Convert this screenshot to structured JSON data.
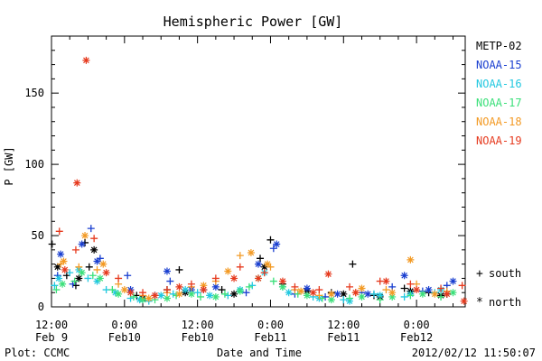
{
  "chart_data": {
    "type": "scatter",
    "title": "Hemispheric Power [GW]",
    "ylabel": "P [GW]",
    "xlabel": "Date and Time",
    "ylim": [
      0,
      190
    ],
    "yticks": [
      0,
      50,
      100,
      150
    ],
    "xlim": [
      12,
      80
    ],
    "xunit": "hours since 2012-02-09 00:00",
    "xticks": [
      {
        "x": 12,
        "line1": "12:00",
        "line2": "Feb 9"
      },
      {
        "x": 24,
        "line1": "0:00",
        "line2": "Feb10"
      },
      {
        "x": 36,
        "line1": "12:00",
        "line2": "Feb10"
      },
      {
        "x": 48,
        "line1": "0:00",
        "line2": "Feb11"
      },
      {
        "x": 60,
        "line1": "12:00",
        "line2": "Feb11"
      },
      {
        "x": 72,
        "line1": "0:00",
        "line2": "Feb12"
      }
    ],
    "marker_legend": [
      {
        "symbol": "+",
        "label": "south"
      },
      {
        "symbol": "*",
        "label": "north"
      }
    ],
    "series": [
      {
        "name": "METP-02",
        "color": "#000000",
        "south": [
          [
            12.1,
            44
          ],
          [
            14.5,
            22
          ],
          [
            16,
            15
          ],
          [
            17.5,
            45
          ],
          [
            18.2,
            28
          ],
          [
            26,
            8
          ],
          [
            31,
            12
          ],
          [
            33,
            26
          ],
          [
            40,
            12
          ],
          [
            46.3,
            34
          ],
          [
            48,
            47
          ],
          [
            50,
            16
          ],
          [
            58,
            10
          ],
          [
            61.5,
            30
          ],
          [
            65,
            8
          ],
          [
            70,
            13
          ],
          [
            74,
            10
          ],
          [
            77,
            9
          ]
        ],
        "north": [
          [
            13,
            28
          ],
          [
            16.5,
            20
          ],
          [
            19,
            40
          ],
          [
            27,
            6
          ],
          [
            34,
            10
          ],
          [
            42,
            9
          ],
          [
            47,
            28
          ],
          [
            54,
            11
          ],
          [
            60,
            9
          ],
          [
            66,
            7
          ],
          [
            71,
            11
          ],
          [
            76,
            8
          ]
        ]
      },
      {
        "name": "NOAA-15",
        "color": "#1a3fd0",
        "south": [
          [
            13,
            22
          ],
          [
            15.5,
            16
          ],
          [
            18.5,
            55
          ],
          [
            20,
            34
          ],
          [
            24.5,
            22
          ],
          [
            29,
            8
          ],
          [
            31.5,
            18
          ],
          [
            37,
            12
          ],
          [
            44,
            10
          ],
          [
            48.5,
            41
          ],
          [
            52,
            9
          ],
          [
            57,
            7
          ],
          [
            63,
            10
          ],
          [
            68,
            14
          ],
          [
            73,
            11
          ],
          [
            77,
            15
          ]
        ],
        "north": [
          [
            13.5,
            37
          ],
          [
            17,
            44
          ],
          [
            19.5,
            32
          ],
          [
            25,
            12
          ],
          [
            31,
            25
          ],
          [
            35,
            12
          ],
          [
            39,
            14
          ],
          [
            46,
            30
          ],
          [
            49,
            44
          ],
          [
            54,
            13
          ],
          [
            59,
            9
          ],
          [
            64,
            9
          ],
          [
            70,
            22
          ],
          [
            74,
            12
          ],
          [
            78,
            18
          ]
        ]
      },
      {
        "name": "NOAA-16",
        "color": "#22c8e0",
        "south": [
          [
            12.5,
            15
          ],
          [
            15,
            24
          ],
          [
            18,
            20
          ],
          [
            21,
            12
          ],
          [
            25,
            6
          ],
          [
            28,
            4
          ],
          [
            32,
            9
          ],
          [
            36,
            10
          ],
          [
            41,
            8
          ],
          [
            45,
            15
          ],
          [
            50,
            14
          ],
          [
            55,
            7
          ],
          [
            60,
            5
          ],
          [
            65,
            9
          ],
          [
            70,
            7
          ],
          [
            75,
            10
          ]
        ],
        "north": [
          [
            13.2,
            20
          ],
          [
            16.5,
            26
          ],
          [
            19.5,
            18
          ],
          [
            22.5,
            10
          ],
          [
            26.5,
            5
          ],
          [
            30,
            8
          ],
          [
            34,
            12
          ],
          [
            38,
            8
          ],
          [
            43,
            12
          ],
          [
            47,
            24
          ],
          [
            51,
            10
          ],
          [
            56,
            6
          ],
          [
            61,
            4
          ],
          [
            66,
            8
          ],
          [
            71,
            9
          ],
          [
            76,
            12
          ]
        ]
      },
      {
        "name": "NOAA-17",
        "color": "#3be07a",
        "south": [
          [
            12.8,
            12
          ],
          [
            15.8,
            18
          ],
          [
            18.8,
            22
          ],
          [
            22,
            12
          ],
          [
            25.5,
            7
          ],
          [
            29,
            5
          ],
          [
            32.5,
            8
          ],
          [
            36.5,
            7
          ],
          [
            40.5,
            9
          ],
          [
            44.5,
            14
          ],
          [
            48.5,
            18
          ],
          [
            52.5,
            9
          ],
          [
            56.5,
            6
          ],
          [
            61,
            6
          ],
          [
            66,
            5
          ],
          [
            71,
            8
          ],
          [
            76,
            7
          ]
        ],
        "north": [
          [
            13.8,
            16
          ],
          [
            17,
            24
          ],
          [
            20,
            20
          ],
          [
            23,
            9
          ],
          [
            27,
            5
          ],
          [
            31,
            6
          ],
          [
            35,
            9
          ],
          [
            39,
            7
          ],
          [
            43,
            11
          ],
          [
            46,
            20
          ],
          [
            50,
            14
          ],
          [
            54,
            8
          ],
          [
            58,
            5
          ],
          [
            63,
            7
          ],
          [
            68,
            7
          ],
          [
            73,
            9
          ],
          [
            78,
            10
          ]
        ]
      },
      {
        "name": "NOAA-18",
        "color": "#f39a24",
        "south": [
          [
            13.5,
            30
          ],
          [
            16.5,
            28
          ],
          [
            19.5,
            26
          ],
          [
            23,
            16
          ],
          [
            27,
            8
          ],
          [
            31,
            10
          ],
          [
            35,
            14
          ],
          [
            39,
            18
          ],
          [
            43,
            36
          ],
          [
            48,
            28
          ],
          [
            52,
            12
          ],
          [
            56,
            8
          ],
          [
            62,
            10
          ],
          [
            67,
            12
          ],
          [
            72,
            16
          ],
          [
            77,
            11
          ]
        ],
        "north": [
          [
            14,
            32
          ],
          [
            17.5,
            50
          ],
          [
            20.5,
            30
          ],
          [
            24,
            12
          ],
          [
            28,
            6
          ],
          [
            33,
            9
          ],
          [
            37,
            15
          ],
          [
            41,
            25
          ],
          [
            44.8,
            38
          ],
          [
            47.5,
            30
          ],
          [
            53,
            11
          ],
          [
            58,
            9
          ],
          [
            63,
            13
          ],
          [
            68,
            10
          ],
          [
            71,
            33
          ],
          [
            75,
            9
          ]
        ]
      },
      {
        "name": "NOAA-19",
        "color": "#e63a1e",
        "south": [
          [
            13.3,
            53
          ],
          [
            16,
            40
          ],
          [
            19,
            48
          ],
          [
            23,
            20
          ],
          [
            27,
            10
          ],
          [
            31,
            12
          ],
          [
            35,
            16
          ],
          [
            39,
            20
          ],
          [
            43,
            28
          ],
          [
            47,
            24
          ],
          [
            52,
            14
          ],
          [
            56,
            12
          ],
          [
            61,
            14
          ],
          [
            66,
            18
          ],
          [
            71,
            16
          ],
          [
            76,
            13
          ],
          [
            79.5,
            15
          ]
        ],
        "north": [
          [
            14.2,
            26
          ],
          [
            16.2,
            87
          ],
          [
            17.7,
            173
          ],
          [
            21,
            24
          ],
          [
            25,
            10
          ],
          [
            29,
            8
          ],
          [
            33,
            14
          ],
          [
            37,
            12
          ],
          [
            42,
            20
          ],
          [
            46,
            20
          ],
          [
            50,
            18
          ],
          [
            55,
            10
          ],
          [
            57.5,
            23
          ],
          [
            62,
            10
          ],
          [
            67,
            18
          ],
          [
            72,
            12
          ],
          [
            77,
            9
          ],
          [
            79.8,
            4
          ]
        ]
      }
    ]
  },
  "footer": {
    "left": "Plot: CCMC",
    "right": "2012/02/12 11:50:07"
  }
}
